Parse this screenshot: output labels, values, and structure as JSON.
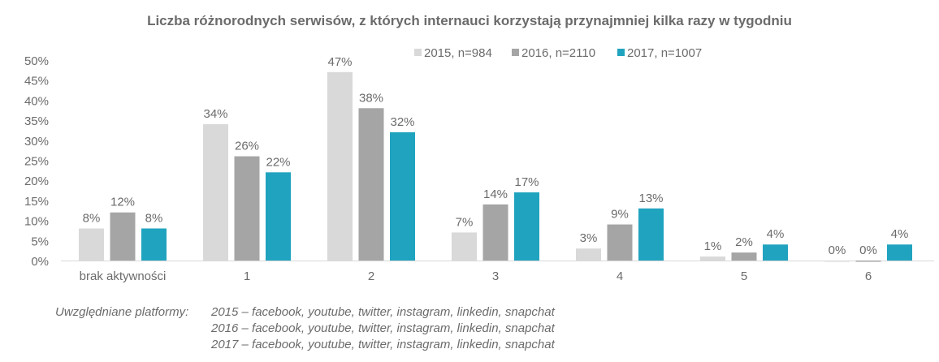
{
  "chart_data": {
    "type": "bar",
    "title": "Liczba różnorodnych serwisów, z których internauci korzystają przynajmniej kilka razy w tygodniu",
    "categories": [
      "brak aktywności",
      "1",
      "2",
      "3",
      "4",
      "5",
      "6"
    ],
    "series": [
      {
        "name": "2015, n=984",
        "color": "#d9d9d9",
        "values": [
          8,
          34,
          47,
          7,
          3,
          1,
          0
        ]
      },
      {
        "name": "2016, n=2110",
        "color": "#a5a5a5",
        "values": [
          12,
          26,
          38,
          14,
          9,
          2,
          0
        ]
      },
      {
        "name": "2017, n=1007",
        "color": "#20a3bf",
        "values": [
          8,
          22,
          32,
          17,
          13,
          4,
          4
        ]
      }
    ],
    "ylim": [
      0,
      50
    ],
    "yticks": [
      "0%",
      "5%",
      "10%",
      "15%",
      "20%",
      "25%",
      "30%",
      "35%",
      "40%",
      "45%",
      "50%"
    ],
    "grid": false,
    "legend": "top-right",
    "xlabel": "",
    "ylabel": ""
  },
  "footnote": {
    "label": "Uwzględniane platformy:",
    "lines": [
      "2015 – facebook, youtube, twitter, instagram, linkedin, snapchat",
      "2016 – facebook, youtube, twitter, instagram, linkedin, snapchat",
      "2017 – facebook, youtube, twitter, instagram, linkedin, snapchat"
    ]
  }
}
